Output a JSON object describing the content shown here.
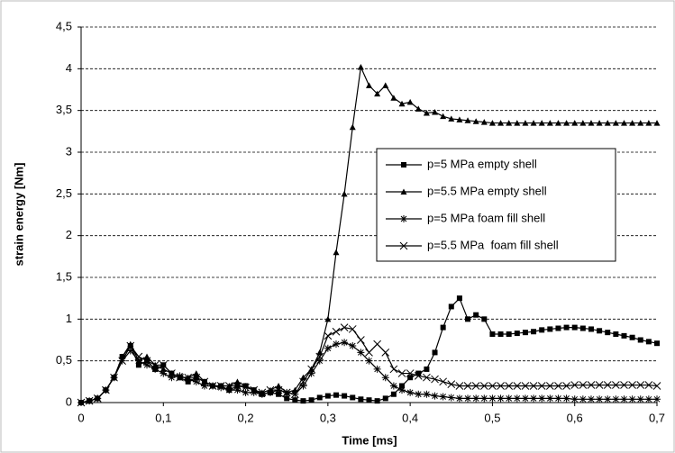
{
  "chart_data": {
    "type": "line",
    "x_label": "Time [ms]",
    "y_label": "strain energy [Nm]",
    "xlim": [
      0,
      0.7
    ],
    "ylim": [
      0,
      4.5
    ],
    "xticks": [
      0,
      {
        "value": 0.1,
        "label": "0,1"
      },
      {
        "value": 0.2,
        "label": "0,2"
      },
      {
        "value": 0.3,
        "label": "0,3"
      },
      {
        "value": 0.4,
        "label": "0,4"
      },
      {
        "value": 0.5,
        "label": "0,5"
      },
      {
        "value": 0.6,
        "label": "0,6"
      },
      {
        "value": 0.7,
        "label": "0,7"
      }
    ],
    "yticks": [
      0,
      {
        "value": 0.5,
        "label": "0,5"
      },
      1,
      {
        "value": 1.5,
        "label": "1,5"
      },
      2,
      {
        "value": 2.5,
        "label": "2,5"
      },
      3,
      {
        "value": 3.5,
        "label": "3,5"
      },
      4,
      {
        "value": 4.5,
        "label": "4,5"
      }
    ],
    "grid": true,
    "x": [
      0,
      0.01,
      0.02,
      0.03,
      0.04,
      0.05,
      0.06,
      0.07,
      0.08,
      0.09,
      0.1,
      0.11,
      0.12,
      0.13,
      0.14,
      0.15,
      0.16,
      0.17,
      0.18,
      0.19,
      0.2,
      0.21,
      0.22,
      0.23,
      0.24,
      0.25,
      0.26,
      0.27,
      0.28,
      0.29,
      0.3,
      0.31,
      0.32,
      0.33,
      0.34,
      0.35,
      0.36,
      0.37,
      0.38,
      0.39,
      0.4,
      0.41,
      0.42,
      0.43,
      0.44,
      0.45,
      0.46,
      0.47,
      0.48,
      0.49,
      0.5,
      0.51,
      0.52,
      0.53,
      0.54,
      0.55,
      0.56,
      0.57,
      0.58,
      0.59,
      0.6,
      0.61,
      0.62,
      0.63,
      0.64,
      0.65,
      0.66,
      0.67,
      0.68,
      0.69,
      0.7
    ],
    "series": [
      {
        "name": "p=5 MPa empty shell",
        "color": "#000000",
        "marker": "square",
        "values": [
          0,
          0.02,
          0.05,
          0.15,
          0.3,
          0.55,
          0.68,
          0.45,
          0.5,
          0.4,
          0.45,
          0.35,
          0.3,
          0.25,
          0.3,
          0.25,
          0.2,
          0.2,
          0.15,
          0.2,
          0.2,
          0.15,
          0.1,
          0.12,
          0.1,
          0.05,
          0.03,
          0.02,
          0.03,
          0.06,
          0.08,
          0.09,
          0.08,
          0.06,
          0.04,
          0.03,
          0.02,
          0.05,
          0.1,
          0.2,
          0.3,
          0.35,
          0.4,
          0.6,
          0.9,
          1.15,
          1.25,
          1.0,
          1.05,
          1.0,
          0.82,
          0.82,
          0.82,
          0.83,
          0.84,
          0.85,
          0.87,
          0.88,
          0.89,
          0.9,
          0.9,
          0.89,
          0.88,
          0.86,
          0.84,
          0.82,
          0.8,
          0.78,
          0.75,
          0.73,
          0.71
        ]
      },
      {
        "name": "p=5.5 MPa empty shell",
        "color": "#000000",
        "marker": "triangle",
        "values": [
          0,
          0.02,
          0.05,
          0.15,
          0.3,
          0.55,
          0.7,
          0.5,
          0.55,
          0.45,
          0.4,
          0.35,
          0.3,
          0.3,
          0.35,
          0.25,
          0.2,
          0.2,
          0.2,
          0.25,
          0.2,
          0.15,
          0.12,
          0.15,
          0.2,
          0.12,
          0.15,
          0.3,
          0.4,
          0.6,
          1.0,
          1.8,
          2.5,
          3.3,
          4.02,
          3.8,
          3.7,
          3.8,
          3.65,
          3.58,
          3.6,
          3.52,
          3.47,
          3.48,
          3.43,
          3.4,
          3.39,
          3.38,
          3.37,
          3.36,
          3.35,
          3.35,
          3.35,
          3.35,
          3.35,
          3.35,
          3.35,
          3.35,
          3.35,
          3.35,
          3.35,
          3.35,
          3.35,
          3.35,
          3.35,
          3.35,
          3.35,
          3.35,
          3.35,
          3.35,
          3.35
        ]
      },
      {
        "name": "p=5 MPa foam fill shell",
        "color": "#000000",
        "marker": "asterisk",
        "values": [
          0,
          0.02,
          0.05,
          0.15,
          0.3,
          0.5,
          0.62,
          0.5,
          0.45,
          0.4,
          0.35,
          0.3,
          0.32,
          0.28,
          0.25,
          0.2,
          0.2,
          0.18,
          0.15,
          0.15,
          0.12,
          0.12,
          0.1,
          0.12,
          0.15,
          0.12,
          0.1,
          0.2,
          0.35,
          0.5,
          0.65,
          0.7,
          0.72,
          0.68,
          0.6,
          0.5,
          0.4,
          0.3,
          0.2,
          0.15,
          0.12,
          0.1,
          0.1,
          0.08,
          0.07,
          0.06,
          0.05,
          0.05,
          0.05,
          0.05,
          0.05,
          0.05,
          0.05,
          0.05,
          0.05,
          0.05,
          0.05,
          0.05,
          0.05,
          0.05,
          0.04,
          0.04,
          0.04,
          0.04,
          0.04,
          0.04,
          0.04,
          0.04,
          0.04,
          0.04,
          0.04
        ]
      },
      {
        "name": "p=5.5 MPa  foam fill shell",
        "color": "#000000",
        "marker": "x",
        "values": [
          0,
          0.02,
          0.05,
          0.15,
          0.3,
          0.5,
          0.68,
          0.55,
          0.5,
          0.45,
          0.45,
          0.35,
          0.3,
          0.3,
          0.3,
          0.25,
          0.2,
          0.2,
          0.2,
          0.2,
          0.18,
          0.15,
          0.12,
          0.15,
          0.15,
          0.12,
          0.1,
          0.25,
          0.4,
          0.55,
          0.8,
          0.85,
          0.9,
          0.88,
          0.75,
          0.6,
          0.7,
          0.6,
          0.4,
          0.35,
          0.35,
          0.32,
          0.3,
          0.28,
          0.25,
          0.22,
          0.2,
          0.2,
          0.2,
          0.2,
          0.2,
          0.2,
          0.2,
          0.2,
          0.2,
          0.2,
          0.2,
          0.2,
          0.2,
          0.2,
          0.21,
          0.21,
          0.21,
          0.21,
          0.21,
          0.21,
          0.21,
          0.21,
          0.21,
          0.21,
          0.2
        ]
      }
    ]
  }
}
